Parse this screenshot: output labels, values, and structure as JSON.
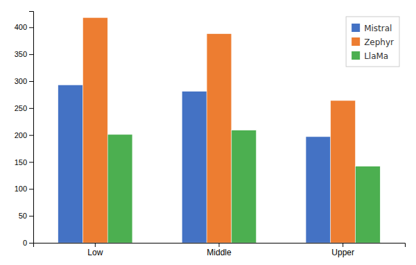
{
  "chart_data": {
    "type": "bar",
    "categories": [
      "Low",
      "Middle",
      "Upper"
    ],
    "series": [
      {
        "name": "Mistral",
        "color": "#4472C4",
        "values": [
          293,
          281,
          197
        ]
      },
      {
        "name": "Zephyr",
        "color": "#ED7D31",
        "values": [
          418,
          388,
          264
        ]
      },
      {
        "name": "LlaMa",
        "color": "#4CAF50",
        "values": [
          201,
          209,
          142
        ]
      }
    ],
    "ylim": [
      0,
      430
    ],
    "yticks": [
      0,
      50,
      100,
      150,
      200,
      250,
      300,
      350,
      400
    ],
    "grid": false,
    "legend": "upper right"
  }
}
